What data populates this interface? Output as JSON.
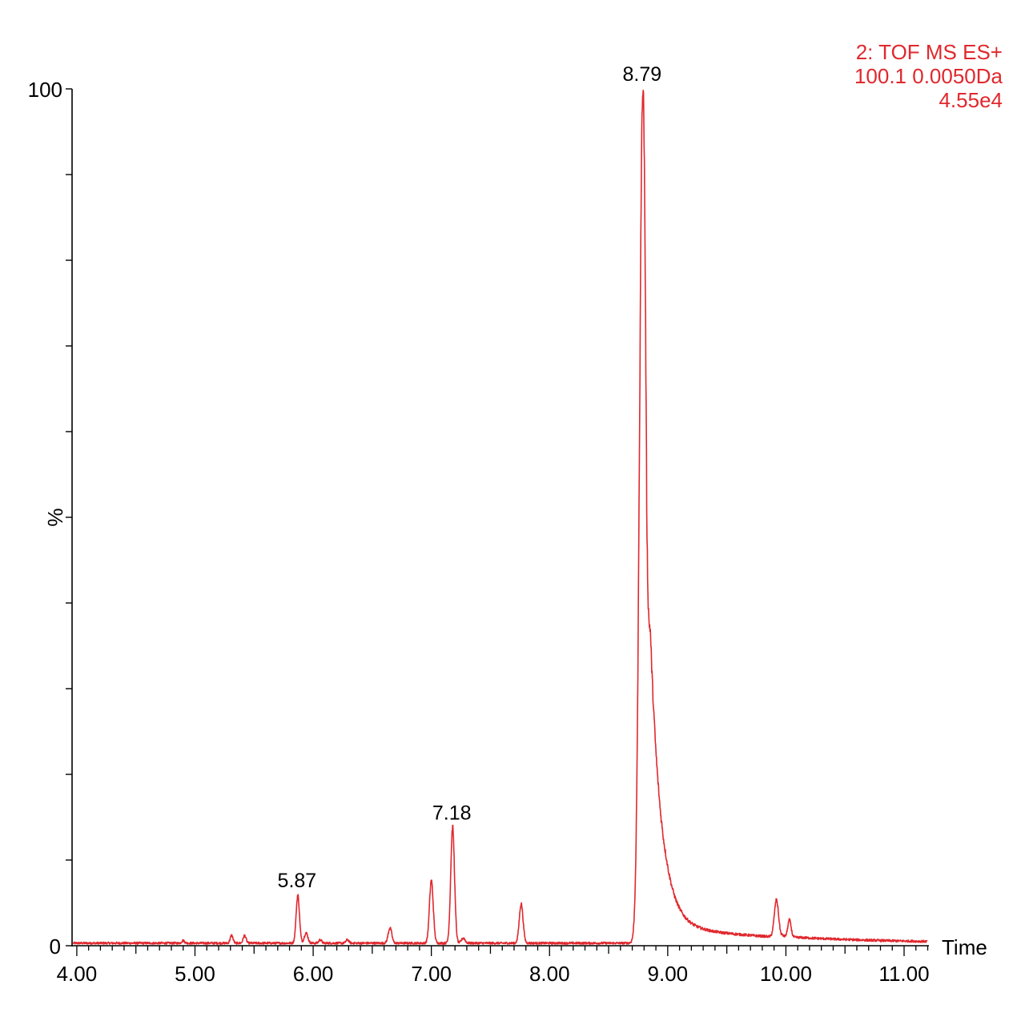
{
  "chart_data": {
    "type": "line",
    "title": "",
    "xlabel": "Time",
    "ylabel": "%",
    "xlim": [
      3.96,
      11.21
    ],
    "ylim": [
      0,
      100
    ],
    "x_ticks": [
      4.0,
      5.0,
      6.0,
      7.0,
      8.0,
      9.0,
      10.0,
      11.0
    ],
    "x_tick_labels": [
      "4.00",
      "5.00",
      "6.00",
      "7.00",
      "8.00",
      "9.00",
      "10.00",
      "11.00"
    ],
    "y_tick_labels": [
      "0",
      "100"
    ],
    "series_color": "#e0282e",
    "annotation": {
      "line1": "2: TOF MS ES+",
      "line2": "100.1 0.0050Da",
      "line3": "4.55e4"
    },
    "baseline": 0.3,
    "peaks": [
      {
        "rt": 4.9,
        "height": 0.3,
        "width": 0.012,
        "tail": 0
      },
      {
        "rt": 5.31,
        "height": 0.9,
        "width": 0.012,
        "tail": 0
      },
      {
        "rt": 5.42,
        "height": 0.9,
        "width": 0.012,
        "tail": 0
      },
      {
        "rt": 5.87,
        "height": 5.6,
        "width": 0.014,
        "tail": 0,
        "label": "5.87"
      },
      {
        "rt": 5.94,
        "height": 1.2,
        "width": 0.015,
        "tail": 0
      },
      {
        "rt": 6.06,
        "height": 0.4,
        "width": 0.012,
        "tail": 0
      },
      {
        "rt": 6.29,
        "height": 0.4,
        "width": 0.012,
        "tail": 0
      },
      {
        "rt": 6.65,
        "height": 1.8,
        "width": 0.015,
        "tail": 0
      },
      {
        "rt": 7.0,
        "height": 7.3,
        "width": 0.016,
        "tail": 0
      },
      {
        "rt": 7.18,
        "height": 13.5,
        "width": 0.016,
        "tail": 0,
        "label": "7.18"
      },
      {
        "rt": 7.27,
        "height": 0.6,
        "width": 0.015,
        "tail": 0
      },
      {
        "rt": 7.76,
        "height": 4.6,
        "width": 0.016,
        "tail": 0
      },
      {
        "rt": 8.79,
        "height": 100,
        "width": 0.028,
        "tail": 0.09,
        "label": "8.79"
      },
      {
        "rt": 9.92,
        "height": 4.3,
        "width": 0.018,
        "tail": 0.02
      },
      {
        "rt": 10.03,
        "height": 2.0,
        "width": 0.014,
        "tail": 0
      }
    ]
  }
}
